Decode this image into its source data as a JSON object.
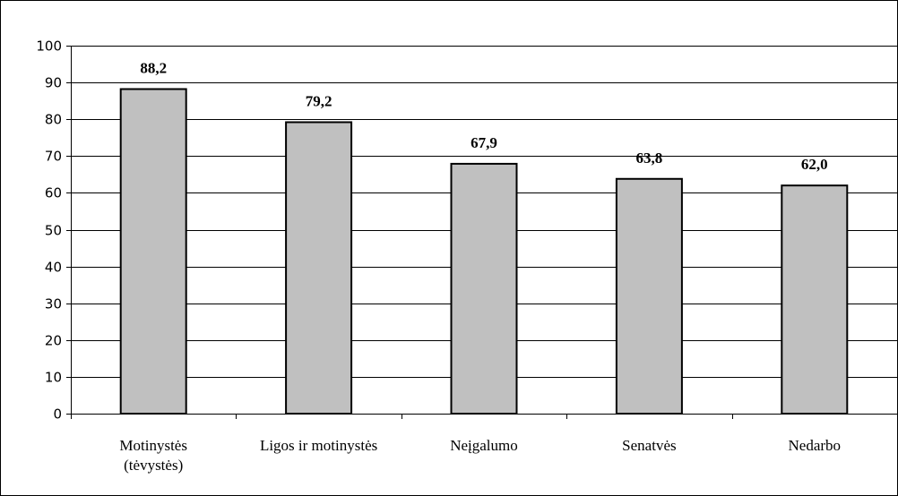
{
  "chart_data": {
    "type": "bar",
    "title": "",
    "xlabel": "",
    "ylabel": "",
    "categories": [
      [
        "Motinystės",
        "(tėvystės)"
      ],
      [
        "Ligos ir motinystės"
      ],
      [
        "Neįgalumo"
      ],
      [
        "Senatvės"
      ],
      [
        "Nedarbo"
      ]
    ],
    "values": [
      88.2,
      79.2,
      67.9,
      63.8,
      62.0
    ],
    "value_labels": [
      "88,2",
      "79,2",
      "67,9",
      "63,8",
      "62,0"
    ],
    "ylim": [
      0,
      100
    ],
    "yticks": [
      0,
      10,
      20,
      30,
      40,
      50,
      60,
      70,
      80,
      90,
      100
    ],
    "grid": true,
    "legend": "none",
    "colors": {
      "bar_fill": "#c0c0c0",
      "bar_stroke": "#000000",
      "grid": "#000000",
      "background": "#ffffff",
      "frame": "#000000"
    }
  }
}
